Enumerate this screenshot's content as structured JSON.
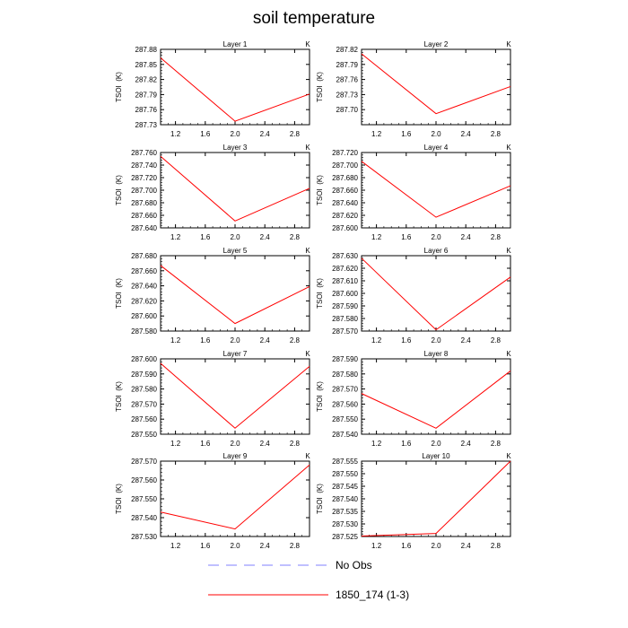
{
  "figure": {
    "title": "soil temperature",
    "legend": [
      {
        "label": "No Obs",
        "color": "#8080ff",
        "dashed": true
      },
      {
        "label": "1850_174 (1-3)",
        "color": "#ff0000",
        "dashed": false
      }
    ]
  },
  "chart_data": [
    {
      "type": "line",
      "title": "Layer 1",
      "units": "K",
      "ylabel": "TSOI  (K)",
      "xlim": [
        1.0,
        3.0
      ],
      "xticks": [
        "1.2",
        "1.6",
        "2.0",
        "2.4",
        "2.8"
      ],
      "ylim": [
        287.73,
        287.88
      ],
      "yticks": [
        "287.73",
        "287.76",
        "287.79",
        "287.82",
        "287.85",
        "287.88"
      ],
      "series": [
        {
          "name": "1850_174 (1-3)",
          "x": [
            1.0,
            2.0,
            3.0
          ],
          "y": [
            287.863,
            287.737,
            287.791
          ]
        }
      ]
    },
    {
      "type": "line",
      "title": "Layer 2",
      "units": "K",
      "ylabel": "TSOI  (K)",
      "xlim": [
        1.0,
        3.0
      ],
      "xticks": [
        "1.2",
        "1.6",
        "2.0",
        "2.4",
        "2.8"
      ],
      "ylim": [
        287.67,
        287.82
      ],
      "yticks": [
        "287.70",
        "287.73",
        "287.76",
        "287.79",
        "287.82"
      ],
      "series": [
        {
          "name": "1850_174 (1-3)",
          "x": [
            1.0,
            2.0,
            3.0
          ],
          "y": [
            287.811,
            287.692,
            287.746
          ]
        }
      ]
    },
    {
      "type": "line",
      "title": "Layer 3",
      "units": "K",
      "ylabel": "TSOI  (K)",
      "xlim": [
        1.0,
        3.0
      ],
      "xticks": [
        "1.2",
        "1.6",
        "2.0",
        "2.4",
        "2.8"
      ],
      "ylim": [
        287.64,
        287.76
      ],
      "yticks": [
        "287.640",
        "287.660",
        "287.680",
        "287.700",
        "287.720",
        "287.740",
        "287.760"
      ],
      "series": [
        {
          "name": "1850_174 (1-3)",
          "x": [
            1.0,
            2.0,
            3.0
          ],
          "y": [
            287.754,
            287.651,
            287.703
          ]
        }
      ]
    },
    {
      "type": "line",
      "title": "Layer 4",
      "units": "K",
      "ylabel": "TSOI  (K)",
      "xlim": [
        1.0,
        3.0
      ],
      "xticks": [
        "1.2",
        "1.6",
        "2.0",
        "2.4",
        "2.8"
      ],
      "ylim": [
        287.6,
        287.72
      ],
      "yticks": [
        "287.600",
        "287.620",
        "287.640",
        "287.660",
        "287.680",
        "287.700",
        "287.720"
      ],
      "series": [
        {
          "name": "1850_174 (1-3)",
          "x": [
            1.0,
            2.0,
            3.0
          ],
          "y": [
            287.706,
            287.617,
            287.667
          ]
        }
      ]
    },
    {
      "type": "line",
      "title": "Layer 5",
      "units": "K",
      "ylabel": "TSOI  (K)",
      "xlim": [
        1.0,
        3.0
      ],
      "xticks": [
        "1.2",
        "1.6",
        "2.0",
        "2.4",
        "2.8"
      ],
      "ylim": [
        287.58,
        287.68
      ],
      "yticks": [
        "287.580",
        "287.600",
        "287.620",
        "287.640",
        "287.660",
        "287.680"
      ],
      "series": [
        {
          "name": "1850_174 (1-3)",
          "x": [
            1.0,
            2.0,
            3.0
          ],
          "y": [
            287.667,
            287.59,
            287.639
          ]
        }
      ]
    },
    {
      "type": "line",
      "title": "Layer 6",
      "units": "K",
      "ylabel": "TSOI  (K)",
      "xlim": [
        1.0,
        3.0
      ],
      "xticks": [
        "1.2",
        "1.6",
        "2.0",
        "2.4",
        "2.8"
      ],
      "ylim": [
        287.57,
        287.63
      ],
      "yticks": [
        "287.570",
        "287.580",
        "287.590",
        "287.600",
        "287.610",
        "287.620",
        "287.630"
      ],
      "series": [
        {
          "name": "1850_174 (1-3)",
          "x": [
            1.0,
            2.0,
            3.0
          ],
          "y": [
            287.628,
            287.571,
            287.613
          ]
        }
      ]
    },
    {
      "type": "line",
      "title": "Layer 7",
      "units": "K",
      "ylabel": "TSOI  (K)",
      "xlim": [
        1.0,
        3.0
      ],
      "xticks": [
        "1.2",
        "1.6",
        "2.0",
        "2.4",
        "2.8"
      ],
      "ylim": [
        287.55,
        287.6
      ],
      "yticks": [
        "287.550",
        "287.560",
        "287.570",
        "287.580",
        "287.590",
        "287.600"
      ],
      "series": [
        {
          "name": "1850_174 (1-3)",
          "x": [
            1.0,
            2.0,
            3.0
          ],
          "y": [
            287.597,
            287.554,
            287.595
          ]
        }
      ]
    },
    {
      "type": "line",
      "title": "Layer 8",
      "units": "K",
      "ylabel": "TSOI  (K)",
      "xlim": [
        1.0,
        3.0
      ],
      "xticks": [
        "1.2",
        "1.6",
        "2.0",
        "2.4",
        "2.8"
      ],
      "ylim": [
        287.54,
        287.59
      ],
      "yticks": [
        "287.540",
        "287.550",
        "287.560",
        "287.570",
        "287.580",
        "287.590"
      ],
      "series": [
        {
          "name": "1850_174 (1-3)",
          "x": [
            1.0,
            2.0,
            3.0
          ],
          "y": [
            287.567,
            287.544,
            287.582
          ]
        }
      ]
    },
    {
      "type": "line",
      "title": "Layer 9",
      "units": "K",
      "ylabel": "TSOI  (K)",
      "xlim": [
        1.0,
        3.0
      ],
      "xticks": [
        "1.2",
        "1.6",
        "2.0",
        "2.4",
        "2.8"
      ],
      "ylim": [
        287.53,
        287.57
      ],
      "yticks": [
        "287.530",
        "287.540",
        "287.550",
        "287.560",
        "287.570"
      ],
      "series": [
        {
          "name": "1850_174 (1-3)",
          "x": [
            1.0,
            2.0,
            3.0
          ],
          "y": [
            287.543,
            287.534,
            287.568
          ]
        }
      ]
    },
    {
      "type": "line",
      "title": "Layer 10",
      "units": "K",
      "ylabel": "TSOI  (K)",
      "xlim": [
        1.0,
        3.0
      ],
      "xticks": [
        "1.2",
        "1.6",
        "2.0",
        "2.4",
        "2.8"
      ],
      "ylim": [
        287.525,
        287.555
      ],
      "yticks": [
        "287.525",
        "287.530",
        "287.535",
        "287.540",
        "287.545",
        "287.550",
        "287.555"
      ],
      "series": [
        {
          "name": "1850_174 (1-3)",
          "x": [
            1.0,
            2.0,
            3.0
          ],
          "y": [
            287.5252,
            287.5262,
            287.555
          ]
        }
      ]
    }
  ]
}
